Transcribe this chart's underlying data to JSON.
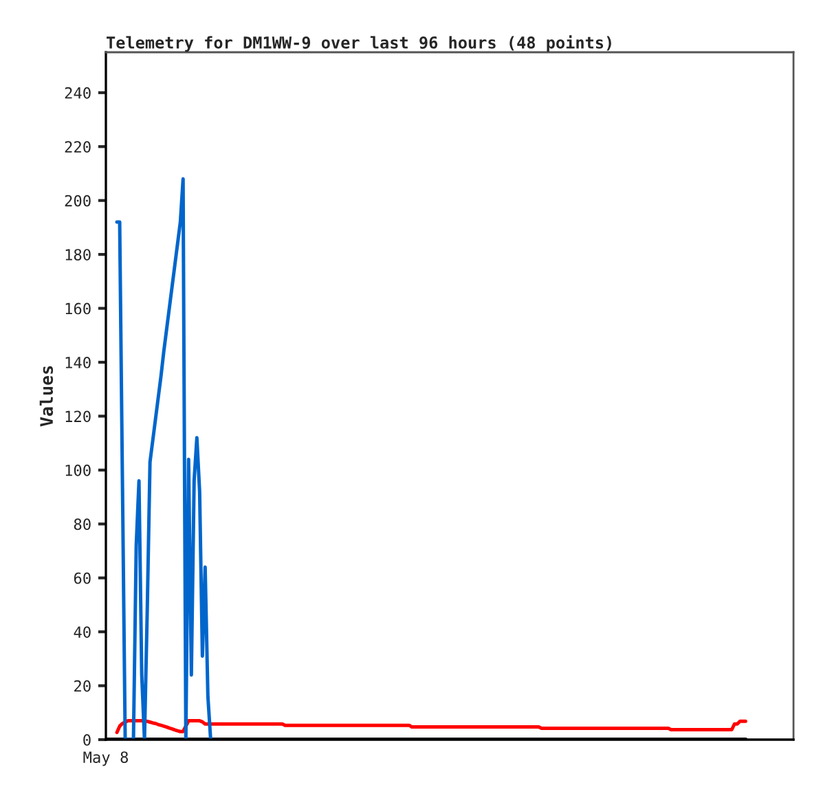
{
  "chart_data": {
    "type": "line",
    "title": "Telemetry for DM1WW-9 over last 96 hours (48 points)",
    "ylabel": "Values",
    "categories": [
      "May 8",
      null,
      null,
      null,
      null,
      null,
      null,
      null,
      null,
      null,
      null,
      null,
      null,
      null,
      null,
      null,
      null,
      null,
      null,
      null,
      null,
      null,
      null,
      null,
      null,
      null,
      null,
      null,
      null,
      null,
      null,
      null,
      null,
      null,
      null,
      null,
      null,
      null,
      null,
      null,
      null,
      null,
      null,
      null,
      null,
      null,
      null,
      null,
      null,
      null,
      null,
      null,
      null,
      null,
      null,
      null,
      null,
      null,
      null,
      null,
      null,
      null,
      null,
      null,
      null,
      null,
      null,
      null,
      null,
      null,
      null,
      null,
      null,
      null,
      null,
      null,
      null,
      null,
      null,
      null,
      null,
      null,
      null,
      null,
      null,
      null,
      null,
      null,
      null,
      null,
      null,
      null,
      null,
      null,
      null,
      null,
      null,
      null,
      null,
      null,
      null,
      null,
      null,
      null,
      null,
      null,
      null,
      null,
      null,
      null,
      null,
      null,
      null,
      null,
      null,
      null,
      null,
      null,
      null,
      null,
      null,
      null,
      null,
      null,
      null,
      null,
      null,
      null,
      null,
      null,
      null,
      null,
      null,
      null,
      null,
      null,
      null,
      null,
      null,
      null,
      null,
      null,
      null,
      null,
      null,
      null,
      null,
      null,
      null,
      null,
      null,
      null,
      null,
      null,
      null,
      null,
      null,
      null,
      null,
      null,
      null,
      null,
      null,
      null,
      null,
      null,
      null,
      null,
      null,
      null,
      null,
      null,
      null,
      null,
      null,
      null,
      null,
      null,
      null,
      null,
      null,
      null,
      null,
      null,
      null,
      null,
      null,
      null,
      null,
      null,
      null,
      null,
      null,
      null,
      null,
      null,
      null,
      null,
      null,
      null,
      null,
      null,
      null,
      null,
      null,
      null,
      null,
      null,
      null,
      null,
      null,
      null,
      null,
      null,
      null,
      null,
      null,
      null,
      null,
      null,
      null,
      null,
      null,
      null,
      null,
      null,
      null,
      null,
      null,
      null,
      null,
      null,
      null
    ],
    "ylim": [
      0,
      255
    ],
    "yticks": [
      0,
      20,
      40,
      60,
      80,
      100,
      120,
      140,
      160,
      180,
      200,
      220,
      240
    ],
    "grid": false,
    "marker": "none",
    "line_style": "solid",
    "series": [
      {
        "color": "#000000",
        "values": [
          0,
          0,
          0,
          0,
          0,
          0,
          0,
          0,
          0,
          0,
          0,
          0,
          0,
          0,
          0,
          0,
          0,
          0,
          0,
          0,
          0,
          0,
          0,
          0,
          0,
          0,
          0,
          0,
          0,
          0,
          0,
          0,
          0,
          0,
          0,
          0,
          0,
          0,
          0,
          0,
          0,
          0,
          0,
          0,
          0,
          0,
          0,
          0,
          0,
          0,
          0,
          0,
          0,
          0,
          0,
          0,
          0,
          0,
          0,
          0,
          0,
          0,
          0,
          0,
          0,
          0,
          0,
          0,
          0,
          0,
          0,
          0,
          0,
          0,
          0,
          0,
          0,
          0,
          0,
          0,
          0,
          0,
          0,
          0,
          0,
          0,
          0,
          0,
          0,
          0,
          0,
          0,
          0,
          0,
          0,
          0,
          0,
          0,
          0,
          0,
          0,
          0,
          0,
          0,
          0,
          0,
          0,
          0,
          0,
          0,
          0,
          0,
          0,
          0,
          0,
          0,
          0,
          0,
          0,
          0,
          0,
          0,
          0,
          0,
          0,
          0,
          0,
          0,
          0,
          0,
          0,
          0,
          0,
          0,
          0,
          0,
          0,
          0,
          0,
          0,
          0,
          0,
          0,
          0,
          0,
          0,
          0,
          0,
          0,
          0,
          0,
          0,
          0,
          0,
          0,
          0,
          0,
          0,
          0,
          0,
          0,
          0,
          0,
          0,
          0,
          0,
          0,
          0,
          0,
          0,
          0,
          0,
          0,
          0,
          0,
          0,
          0,
          0,
          0,
          0,
          0,
          0,
          0,
          0,
          0,
          0,
          0,
          0,
          0,
          0,
          0,
          0,
          0,
          0,
          0,
          0,
          0,
          0,
          0,
          0,
          0,
          0,
          0,
          0,
          0,
          0,
          0,
          0,
          0,
          0,
          0,
          0,
          0,
          0,
          0,
          0,
          0,
          0,
          0,
          0,
          0,
          0,
          0,
          0,
          0,
          0,
          0,
          0,
          0,
          0,
          0,
          0,
          0
        ]
      },
      {
        "color": "#ff0000",
        "values": [
          null,
          null,
          null,
          null,
          2.7,
          5,
          6,
          6.5,
          7,
          7,
          7,
          7,
          7,
          7,
          7,
          6.8,
          6.5,
          6.2,
          6,
          5.6,
          5.3,
          5,
          4.7,
          4.3,
          4,
          3.6,
          3.3,
          3,
          3,
          5,
          7,
          7,
          7,
          7,
          7,
          6.6,
          5.8,
          5.8,
          5.8,
          5.8,
          5.8,
          5.8,
          5.8,
          5.8,
          5.8,
          5.8,
          5.8,
          5.8,
          5.8,
          5.8,
          5.8,
          5.8,
          5.8,
          5.8,
          5.8,
          5.8,
          5.8,
          5.8,
          5.8,
          5.8,
          5.8,
          5.8,
          5.8,
          5.8,
          5.8,
          5.3,
          5.3,
          5.3,
          5.3,
          5.3,
          5.3,
          5.3,
          5.3,
          5.3,
          5.3,
          5.3,
          5.3,
          5.3,
          5.3,
          5.3,
          5.3,
          5.3,
          5.3,
          5.3,
          5.3,
          5.3,
          5.3,
          5.3,
          5.3,
          5.3,
          5.3,
          5.3,
          5.3,
          5.3,
          5.3,
          5.3,
          5.3,
          5.3,
          5.3,
          5.3,
          5.3,
          5.3,
          5.3,
          5.3,
          5.3,
          5.3,
          5.3,
          5.3,
          5.3,
          5.3,
          5.3,
          4.7,
          4.7,
          4.7,
          4.7,
          4.7,
          4.7,
          4.7,
          4.7,
          4.7,
          4.7,
          4.7,
          4.7,
          4.7,
          4.7,
          4.7,
          4.7,
          4.7,
          4.7,
          4.7,
          4.7,
          4.7,
          4.7,
          4.7,
          4.7,
          4.7,
          4.7,
          4.7,
          4.7,
          4.7,
          4.7,
          4.7,
          4.7,
          4.7,
          4.7,
          4.7,
          4.7,
          4.7,
          4.7,
          4.7,
          4.7,
          4.7,
          4.7,
          4.7,
          4.7,
          4.7,
          4.7,
          4.7,
          4.2,
          4.2,
          4.2,
          4.2,
          4.2,
          4.2,
          4.2,
          4.2,
          4.2,
          4.2,
          4.2,
          4.2,
          4.2,
          4.2,
          4.2,
          4.2,
          4.2,
          4.2,
          4.2,
          4.2,
          4.2,
          4.2,
          4.2,
          4.2,
          4.2,
          4.2,
          4.2,
          4.2,
          4.2,
          4.2,
          4.2,
          4.2,
          4.2,
          4.2,
          4.2,
          4.2,
          4.2,
          4.2,
          4.2,
          4.2,
          4.2,
          4.2,
          4.2,
          4.2,
          4.2,
          4.2,
          4.2,
          3.7,
          3.7,
          3.7,
          3.7,
          3.7,
          3.7,
          3.7,
          3.7,
          3.7,
          3.7,
          3.7,
          3.7,
          3.7,
          3.7,
          3.7,
          3.7,
          3.7,
          3.7,
          3.7,
          3.7,
          3.7,
          3.7,
          3.7,
          5.8,
          5.8,
          6.8,
          6.8,
          6.8
        ]
      },
      {
        "color": "#0066cc",
        "values": [
          null,
          null,
          null,
          null,
          192,
          192,
          96,
          0,
          0,
          0,
          0,
          72,
          96,
          24,
          0,
          48,
          103,
          111,
          119,
          127,
          135,
          144,
          152,
          160,
          168,
          176,
          184,
          192,
          208,
          0,
          104,
          24,
          96,
          112,
          92,
          31,
          64,
          16,
          0,
          null,
          null,
          null,
          null,
          null,
          null,
          null,
          null,
          null,
          null,
          null,
          null,
          null,
          null,
          null,
          null,
          null,
          null,
          null,
          null,
          null,
          null,
          null,
          null,
          null,
          null,
          null,
          null,
          null,
          null,
          null,
          null,
          null,
          null,
          null,
          null,
          null,
          null,
          null,
          null,
          null,
          null,
          null,
          null,
          null,
          null,
          null,
          null,
          null,
          null,
          null,
          null,
          null,
          null,
          null,
          null,
          null,
          null,
          null,
          null,
          null,
          null,
          null,
          null,
          null,
          null,
          null,
          null,
          null,
          null,
          null,
          null,
          null,
          null,
          null,
          null,
          null,
          null,
          null,
          null,
          null,
          null,
          null,
          null,
          null,
          null,
          null,
          null,
          null,
          null,
          null,
          null,
          null,
          null,
          null,
          null,
          null,
          null,
          null,
          null,
          null,
          null,
          null,
          null,
          null,
          null,
          null,
          null,
          null,
          null,
          null,
          null,
          null,
          null,
          null,
          null,
          null,
          null,
          null,
          null,
          null,
          null,
          null,
          null,
          null,
          null,
          null,
          null,
          null,
          null,
          null,
          null,
          null,
          null,
          null,
          null,
          null,
          null,
          null,
          null,
          null,
          null,
          null,
          null,
          null,
          null,
          null,
          null,
          null,
          null,
          null,
          null,
          null,
          null,
          null,
          null,
          null,
          null,
          null,
          null,
          null,
          null,
          null,
          null,
          null,
          null,
          null,
          null,
          null,
          null,
          null,
          null,
          null,
          null,
          null,
          null,
          null,
          null,
          null,
          null,
          null,
          null,
          null,
          null,
          null,
          null,
          null,
          null,
          null,
          null,
          null,
          null,
          null,
          null
        ]
      }
    ]
  }
}
